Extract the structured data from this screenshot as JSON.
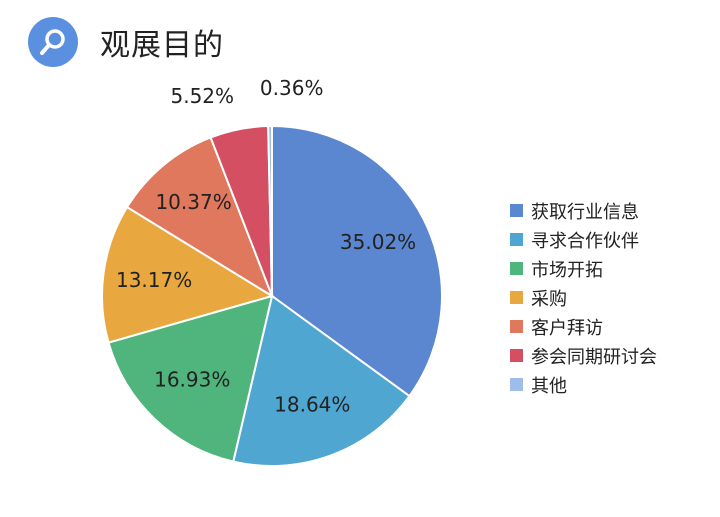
{
  "header": {
    "title": "观展目的",
    "icon": "search-icon",
    "icon_bg_color": "#5b8fe0"
  },
  "chart_data": {
    "type": "pie",
    "title": "",
    "categories": [
      "获取行业信息",
      "寻求合作伙伴",
      "市场开拓",
      "采购",
      "客户拜访",
      "参会同期研讨会",
      "其他"
    ],
    "values": [
      35.02,
      18.64,
      16.93,
      13.17,
      10.37,
      5.52,
      0.36
    ],
    "labels": [
      "35.02%",
      "18.64%",
      "16.93%",
      "13.17%",
      "10.37%",
      "5.52%",
      "0.36%"
    ],
    "colors": [
      "#5b86d0",
      "#4fa6d1",
      "#4fb57d",
      "#e8a83f",
      "#e0785d",
      "#d44f62",
      "#9fbde9"
    ],
    "legend_position": "right"
  }
}
